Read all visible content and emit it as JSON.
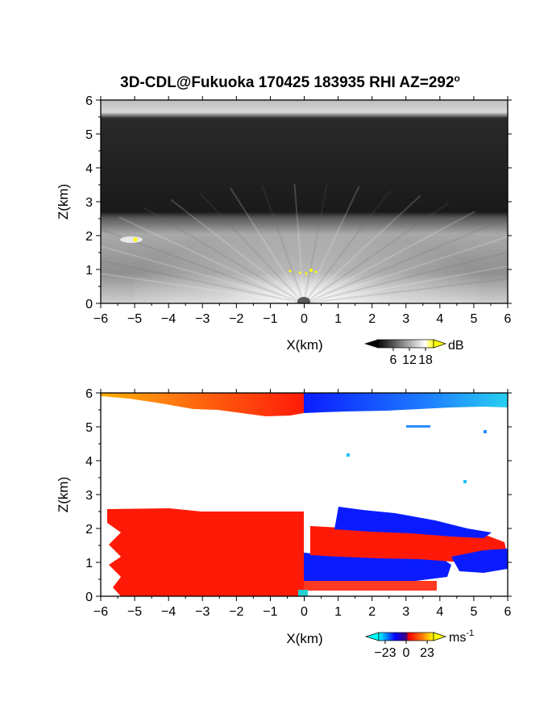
{
  "title": {
    "main": "3D-CDL@Fukuoka 170425 183935 RHI AZ=292",
    "degree_mark": "o"
  },
  "chart_data": [
    {
      "type": "heatmap",
      "name": "backscatter",
      "xlabel": "X(km)",
      "ylabel": "Z(km)",
      "xlim": [
        -6,
        6
      ],
      "ylim": [
        0,
        6
      ],
      "x_ticks": [
        "-6",
        "-5",
        "-4",
        "-3",
        "-2",
        "-1",
        "0",
        "1",
        "2",
        "3",
        "4",
        "5",
        "6"
      ],
      "y_ticks": [
        "0",
        "1",
        "2",
        "3",
        "4",
        "5",
        "6"
      ],
      "colorbar": {
        "unit": "dB",
        "tick_labels": [
          "6",
          "12",
          "18"
        ],
        "ticks": [
          6,
          12,
          18
        ],
        "range": [
          0,
          21
        ],
        "colors": [
          "#000000",
          "#ffffff",
          "#ffff00"
        ]
      },
      "layers": [
        {
          "feature": "upper layer",
          "z_range": [
            5.5,
            6.0
          ],
          "level_db": 14
        },
        {
          "feature": "free troposphere",
          "z_range": [
            2.6,
            5.5
          ],
          "level_db": 4
        },
        {
          "feature": "boundary layer",
          "z_range": [
            0,
            2.5
          ],
          "level_db": 12
        },
        {
          "feature": "bright spot",
          "x": -4.9,
          "z": 1.9,
          "level_db": 20
        },
        {
          "feature": "bright spot",
          "x": 0.2,
          "z": 1.0,
          "level_db": 21
        }
      ]
    },
    {
      "type": "heatmap",
      "name": "radial velocity",
      "xlabel": "X(km)",
      "ylabel": "Z(km)",
      "xlim": [
        -6,
        6
      ],
      "ylim": [
        0,
        6
      ],
      "x_ticks": [
        "-6",
        "-5",
        "-4",
        "-3",
        "-2",
        "-1",
        "0",
        "1",
        "2",
        "3",
        "4",
        "5",
        "6"
      ],
      "y_ticks": [
        "0",
        "1",
        "2",
        "3",
        "4",
        "5",
        "6"
      ],
      "colorbar": {
        "unit": "ms",
        "unit_exponent": "-1",
        "tick_labels": [
          "-23",
          "0",
          "23"
        ],
        "ticks": [
          -23,
          0,
          23
        ],
        "range": [
          -30,
          30
        ],
        "colors": [
          "#00ffff",
          "#0000ff",
          "#ff0000",
          "#ffff00"
        ]
      },
      "regions": [
        {
          "feature": "upper layer, x<0",
          "x_range": [
            -6,
            0
          ],
          "z_range": [
            5.3,
            6.0
          ],
          "velocity": 15
        },
        {
          "feature": "upper layer, x>0",
          "x_range": [
            0,
            6
          ],
          "z_range": [
            5.5,
            6.0
          ],
          "velocity": -15
        },
        {
          "feature": "boundary layer, x<0",
          "x_range": [
            -6,
            0
          ],
          "z_range": [
            0,
            2.5
          ],
          "velocity": 8
        },
        {
          "feature": "boundary layer, x>0 lower",
          "x_range": [
            0,
            4.5
          ],
          "z_range": [
            0.1,
            0.8
          ],
          "velocity": -8
        },
        {
          "feature": "boundary layer, x>0 middle",
          "x_range": [
            0.2,
            6
          ],
          "z_range": [
            0.9,
            1.6
          ],
          "velocity": 8
        },
        {
          "feature": "boundary layer, x>0 upper",
          "x_range": [
            1.0,
            6
          ],
          "z_range": [
            1.6,
            2.3
          ],
          "velocity": -8
        }
      ]
    }
  ]
}
